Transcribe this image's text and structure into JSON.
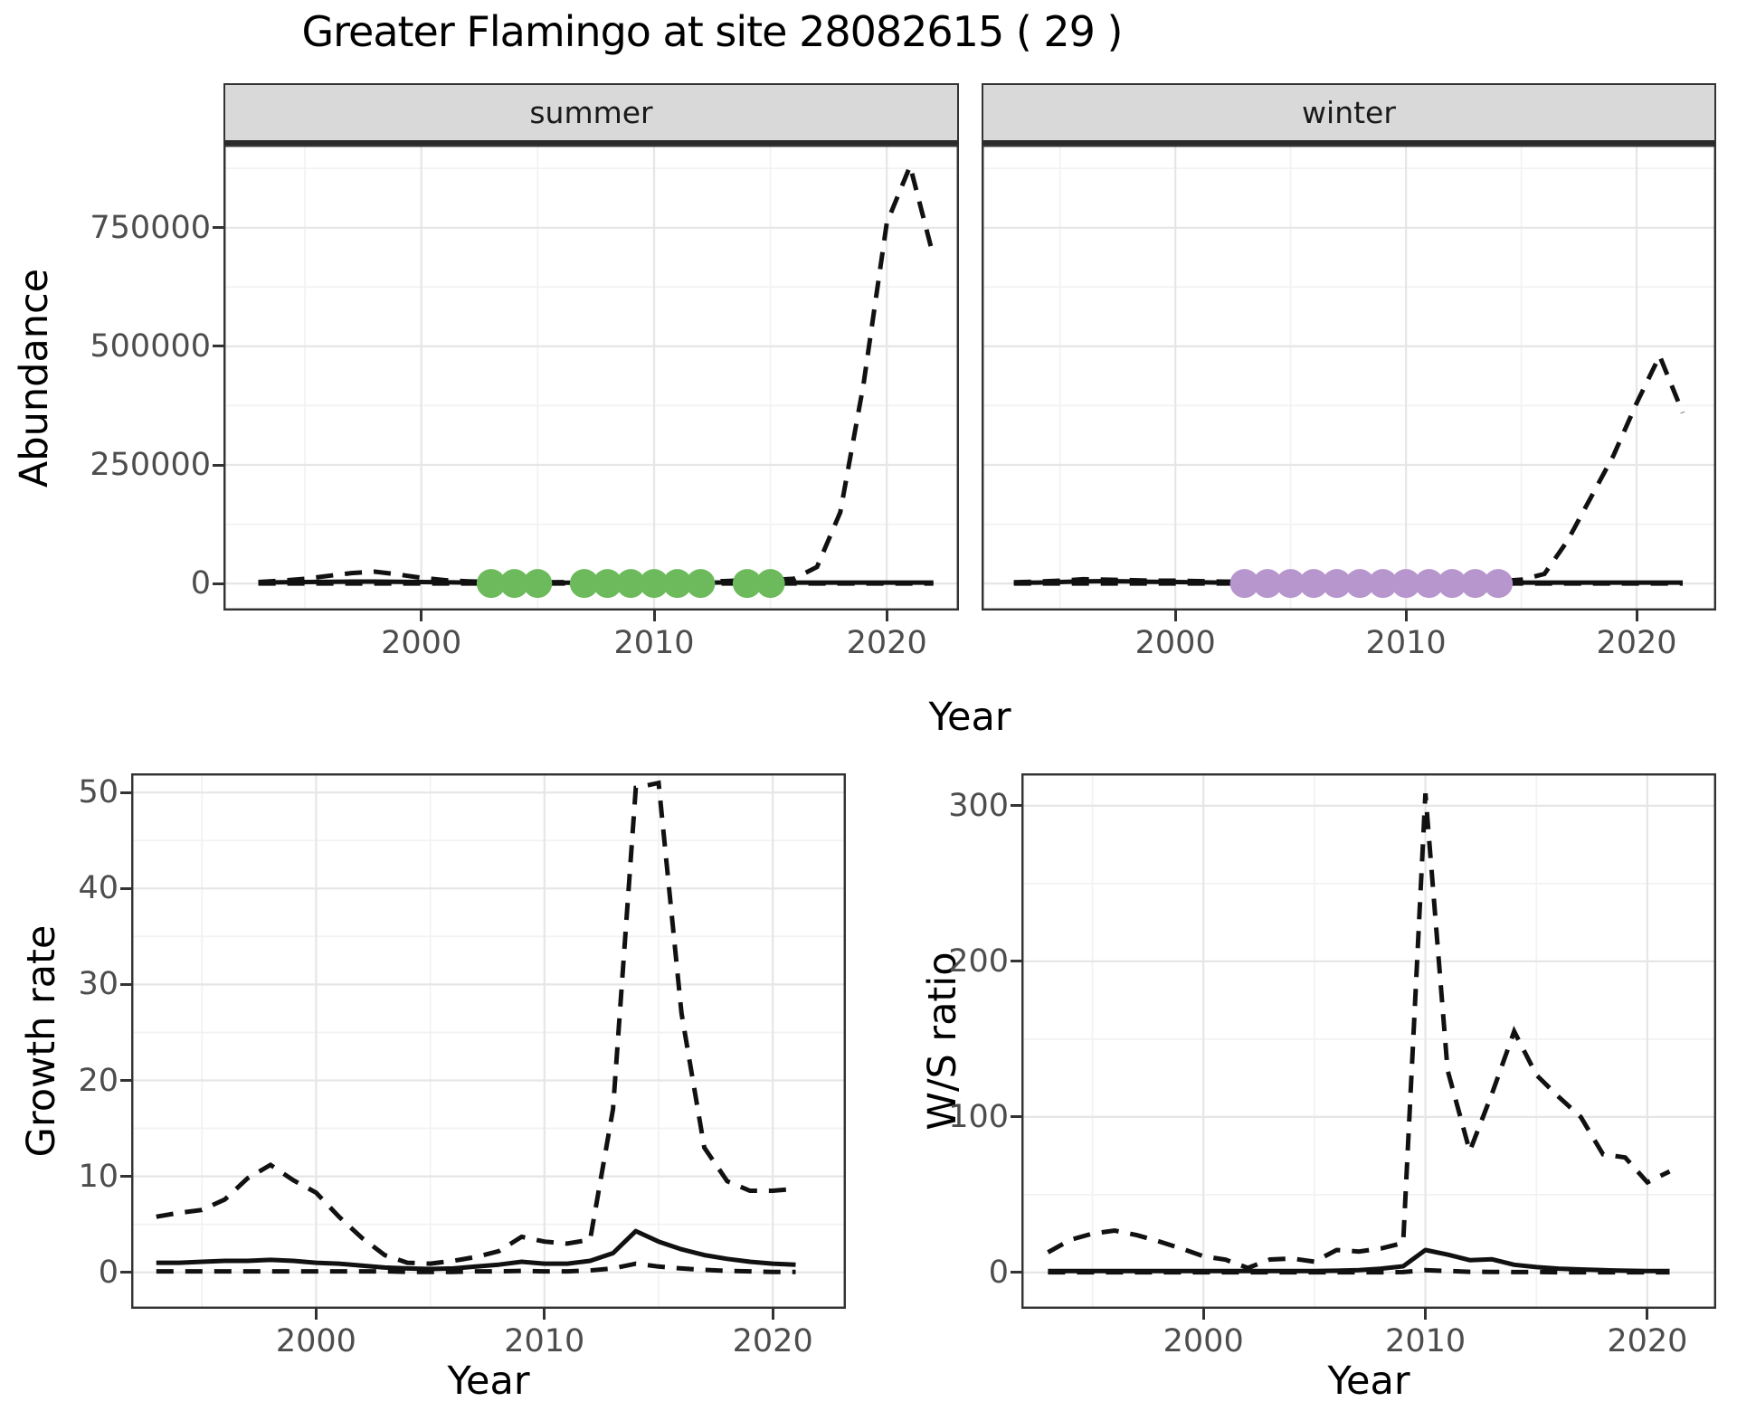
{
  "title": "Greater Flamingo at site 28082615 ( 29 )",
  "colors": {
    "line": "#111111",
    "summer_dot": "#6cba5c",
    "winter_dot": "#b795cd",
    "grid_major": "#e6e6e6",
    "grid_minor": "#f2f2f2",
    "panel_border": "#333333",
    "strip_bg": "#d9d9d9",
    "axis_text": "#4d4d4d"
  },
  "chart_data": {
    "type": "line",
    "title": "Greater Flamingo at site 28082615 ( 29 )",
    "grid": "on",
    "legend_position": "none",
    "top_row": {
      "ylabel": "Abundance",
      "xlabel": "Year"
    },
    "panels": {
      "summer": {
        "facet_label": "summer",
        "xlabel": "Year",
        "ylabel": "Abundance",
        "xlim": [
          1991.5,
          2023.1
        ],
        "ylim": [
          -57000,
          925000
        ],
        "xticks": [
          2000,
          2010,
          2020
        ],
        "xtick_labels": [
          "2000",
          "2010",
          "2020"
        ],
        "xminor": [
          1995,
          2005,
          2015
        ],
        "yticks": [
          0,
          250000,
          500000,
          750000
        ],
        "ytick_labels": [
          "0",
          "250000",
          "500000",
          "750000"
        ],
        "yminor": [
          125000,
          375000,
          625000,
          875000
        ],
        "years": [
          1993,
          1994,
          1995,
          1996,
          1997,
          1998,
          1999,
          2000,
          2001,
          2002,
          2003,
          2004,
          2005,
          2006,
          2007,
          2008,
          2009,
          2010,
          2011,
          2012,
          2013,
          2014,
          2015,
          2016,
          2017,
          2018,
          2019,
          2020,
          2021,
          2022
        ],
        "mean": [
          2000,
          2500,
          3000,
          3500,
          4000,
          4000,
          3500,
          3000,
          2500,
          2000,
          1800,
          1500,
          1500,
          1500,
          1500,
          1800,
          2000,
          2000,
          2000,
          2000,
          2200,
          2500,
          2200,
          2000,
          2000,
          2000,
          2000,
          2000,
          2000,
          2000
        ],
        "upper": [
          3000,
          6000,
          10000,
          16000,
          22000,
          25000,
          19000,
          12000,
          7000,
          4500,
          3000,
          2500,
          2500,
          2800,
          3000,
          3500,
          4000,
          4000,
          4000,
          4500,
          5000,
          7000,
          7000,
          10000,
          35000,
          150000,
          420000,
          760000,
          880000,
          690000
        ],
        "lower": [
          100,
          100,
          100,
          100,
          100,
          100,
          100,
          100,
          100,
          100,
          100,
          100,
          100,
          100,
          100,
          100,
          100,
          100,
          100,
          100,
          100,
          100,
          100,
          100,
          100,
          100,
          100,
          100,
          100,
          100
        ],
        "dots": {
          "years": [
            2003,
            2004,
            2005,
            2007,
            2008,
            2009,
            2010,
            2011,
            2012,
            2014,
            2015
          ],
          "value": 0,
          "color": "#6cba5c"
        }
      },
      "winter": {
        "facet_label": "winter",
        "xlabel": "Year",
        "ylabel": "Abundance",
        "xlim": [
          1991.6,
          2023.45
        ],
        "ylim": [
          -57000,
          925000
        ],
        "xticks": [
          2000,
          2010,
          2020
        ],
        "xtick_labels": [
          "2000",
          "2010",
          "2020"
        ],
        "xminor": [
          1995,
          2005,
          2015
        ],
        "yticks": [
          0,
          250000,
          500000,
          750000
        ],
        "ytick_labels": [
          "0",
          "250000",
          "500000",
          "750000"
        ],
        "yminor": [
          125000,
          375000,
          625000,
          875000
        ],
        "years": [
          1993,
          1994,
          1995,
          1996,
          1997,
          1998,
          1999,
          2000,
          2001,
          2002,
          2003,
          2004,
          2005,
          2006,
          2007,
          2008,
          2009,
          2010,
          2011,
          2012,
          2013,
          2014,
          2015,
          2016,
          2017,
          2018,
          2019,
          2020,
          2021,
          2022
        ],
        "mean": [
          1500,
          2000,
          3000,
          4500,
          5000,
          4500,
          3500,
          3000,
          2500,
          2000,
          2000,
          2000,
          2000,
          2000,
          2000,
          2000,
          2500,
          2500,
          2500,
          2500,
          2500,
          2500,
          2000,
          2000,
          2000,
          2000,
          2000,
          2000,
          2000,
          2000
        ],
        "upper": [
          2500,
          4000,
          6000,
          9000,
          8000,
          7000,
          6000,
          6000,
          5000,
          4000,
          3500,
          3000,
          3000,
          3000,
          3000,
          3500,
          4000,
          4500,
          4500,
          4500,
          4500,
          5000,
          8000,
          20000,
          90000,
          180000,
          270000,
          380000,
          480000,
          360000
        ],
        "lower": [
          100,
          100,
          100,
          100,
          100,
          100,
          100,
          100,
          100,
          100,
          100,
          100,
          100,
          100,
          100,
          100,
          100,
          100,
          100,
          100,
          100,
          100,
          100,
          100,
          100,
          100,
          100,
          100,
          100,
          100
        ],
        "dots": {
          "years": [
            2003,
            2004,
            2005,
            2006,
            2007,
            2008,
            2009,
            2010,
            2011,
            2012,
            2013,
            2014
          ],
          "value": 0,
          "color": "#b795cd"
        }
      },
      "growth": {
        "facet_label": "",
        "xlabel": "Year",
        "ylabel": "Growth rate",
        "xlim": [
          1991.9,
          2023.2
        ],
        "ylim": [
          -3.8,
          52
        ],
        "xticks": [
          2000,
          2010,
          2020
        ],
        "xtick_labels": [
          "2000",
          "2010",
          "2020"
        ],
        "xminor": [
          1995,
          2005,
          2015
        ],
        "yticks": [
          0,
          10,
          20,
          30,
          40,
          50
        ],
        "ytick_labels": [
          "0",
          "10",
          "20",
          "30",
          "40",
          "50"
        ],
        "yminor": [
          5,
          15,
          25,
          35,
          45
        ],
        "years": [
          1993,
          1994,
          1995,
          1996,
          1997,
          1998,
          1999,
          2000,
          2001,
          2002,
          2003,
          2004,
          2005,
          2006,
          2007,
          2008,
          2009,
          2010,
          2011,
          2012,
          2013,
          2014,
          2015,
          2016,
          2017,
          2018,
          2019,
          2020,
          2021
        ],
        "mean": [
          1.0,
          1.0,
          1.1,
          1.2,
          1.2,
          1.3,
          1.2,
          1.0,
          0.9,
          0.7,
          0.5,
          0.4,
          0.35,
          0.4,
          0.6,
          0.8,
          1.1,
          0.9,
          0.9,
          1.2,
          2.0,
          4.3,
          3.2,
          2.4,
          1.8,
          1.4,
          1.1,
          0.9,
          0.8
        ],
        "upper": [
          5.8,
          6.2,
          6.5,
          7.6,
          9.8,
          11.2,
          9.6,
          8.3,
          5.8,
          3.6,
          1.8,
          1.0,
          0.9,
          1.2,
          1.6,
          2.2,
          3.7,
          3.2,
          3.0,
          3.4,
          17.0,
          50.5,
          51.0,
          27.0,
          13.0,
          9.5,
          8.5,
          8.5,
          8.7
        ],
        "lower": [
          0.1,
          0.1,
          0.1,
          0.1,
          0.1,
          0.1,
          0.1,
          0.1,
          0.1,
          0.1,
          0.1,
          0.05,
          0.05,
          0.05,
          0.1,
          0.1,
          0.15,
          0.1,
          0.1,
          0.2,
          0.4,
          0.9,
          0.6,
          0.4,
          0.25,
          0.15,
          0.1,
          0.05,
          0.05
        ],
        "dots": {
          "years": [],
          "value": 0,
          "color": "#6cba5c"
        }
      },
      "ws": {
        "facet_label": "",
        "xlabel": "Year",
        "ylabel": "W/S ratio",
        "xlim": [
          1991.8,
          2023.1
        ],
        "ylim": [
          -23.3,
          320.9
        ],
        "xticks": [
          2000,
          2010,
          2020
        ],
        "xtick_labels": [
          "2000",
          "2010",
          "2020"
        ],
        "xminor": [
          1995,
          2005,
          2015
        ],
        "yticks": [
          0,
          100,
          200,
          300
        ],
        "ytick_labels": [
          "0",
          "100",
          "200",
          "300"
        ],
        "yminor": [
          50,
          150,
          250
        ],
        "years": [
          1993,
          1994,
          1995,
          1996,
          1997,
          1998,
          1999,
          2000,
          2001,
          2002,
          2003,
          2004,
          2005,
          2006,
          2007,
          2008,
          2009,
          2010,
          2011,
          2012,
          2013,
          2014,
          2015,
          2016,
          2017,
          2018,
          2019,
          2020,
          2021
        ],
        "mean": [
          1,
          1,
          1,
          1,
          1,
          1,
          1,
          1,
          1,
          1,
          1,
          1,
          1,
          1.2,
          1.5,
          2.5,
          4,
          14.5,
          11.5,
          8,
          8.5,
          5,
          3.5,
          2.5,
          2,
          1.5,
          1.2,
          1,
          1
        ],
        "upper": [
          13,
          21,
          25,
          27,
          24,
          20,
          15.5,
          10.5,
          8.3,
          3,
          8.4,
          9,
          7,
          14.5,
          13.5,
          15.5,
          19,
          308,
          130,
          78,
          115,
          155,
          127,
          113,
          100,
          76,
          74,
          58,
          65
        ],
        "lower": [
          0.2,
          0.2,
          0.2,
          0.2,
          0.2,
          0.2,
          0.2,
          0.2,
          0.2,
          0.2,
          0.2,
          0.2,
          0.2,
          0.2,
          0.2,
          0.2,
          0.3,
          1.5,
          1.0,
          0.5,
          0.4,
          0.3,
          0.3,
          0.2,
          0.2,
          0.2,
          0.2,
          0.2,
          0.2
        ],
        "dots": {
          "years": [],
          "value": 0,
          "color": "#b795cd"
        }
      }
    }
  }
}
